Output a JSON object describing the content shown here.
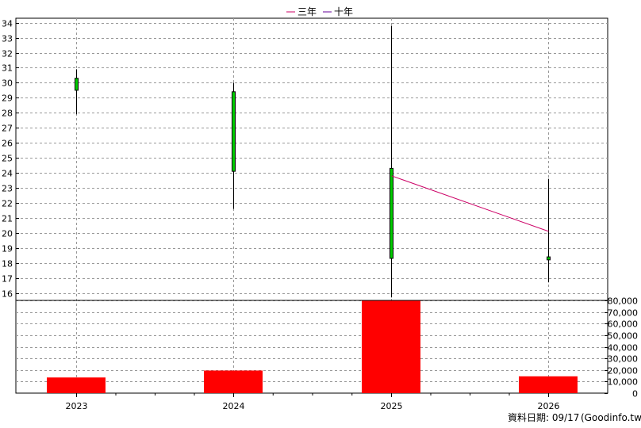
{
  "chart_data": {
    "type": "candlestick",
    "legend": {
      "placement": "top-center",
      "items": [
        {
          "label": "三年",
          "color": "#cc0066"
        },
        {
          "label": "十年",
          "color": "#660099"
        }
      ]
    },
    "categories": [
      "2023",
      "2024",
      "2025",
      "2026"
    ],
    "price": {
      "ylim": [
        15.5,
        34.3
      ],
      "ticks": [
        16,
        17,
        18,
        19,
        20,
        21,
        22,
        23,
        24,
        25,
        26,
        27,
        28,
        29,
        30,
        31,
        32,
        33,
        34
      ],
      "candles": [
        {
          "x": "2023",
          "open": 29.5,
          "close": 30.3,
          "high": 30.9,
          "low": 27.9
        },
        {
          "x": "2024",
          "open": 24.1,
          "close": 29.4,
          "high": 30.0,
          "low": 21.6
        },
        {
          "x": "2025",
          "open": 18.3,
          "close": 24.3,
          "high": 33.8,
          "low": 15.7
        },
        {
          "x": "2026",
          "open": 18.2,
          "close": 18.4,
          "high": 23.6,
          "low": 16.7
        }
      ],
      "candle_color": "#00cc00",
      "three_year_line": [
        {
          "x": "2025",
          "y": 23.8
        },
        {
          "x": "2026",
          "y": 20.1
        }
      ]
    },
    "volume": {
      "ylim": [
        0,
        80000
      ],
      "ticks": [
        0,
        10000,
        20000,
        30000,
        40000,
        50000,
        60000,
        70000,
        80000
      ],
      "tick_labels": [
        "0",
        "10,000",
        "20,000",
        "30,000",
        "40,000",
        "50,000",
        "60,000",
        "70,000",
        "80,000"
      ],
      "values": [
        13500,
        19500,
        81000,
        14500
      ],
      "color": "#ff0000"
    },
    "grid": true
  },
  "footer": {
    "date_label": "資料日期: 09/17",
    "source": "(Goodinfo.tw)"
  }
}
